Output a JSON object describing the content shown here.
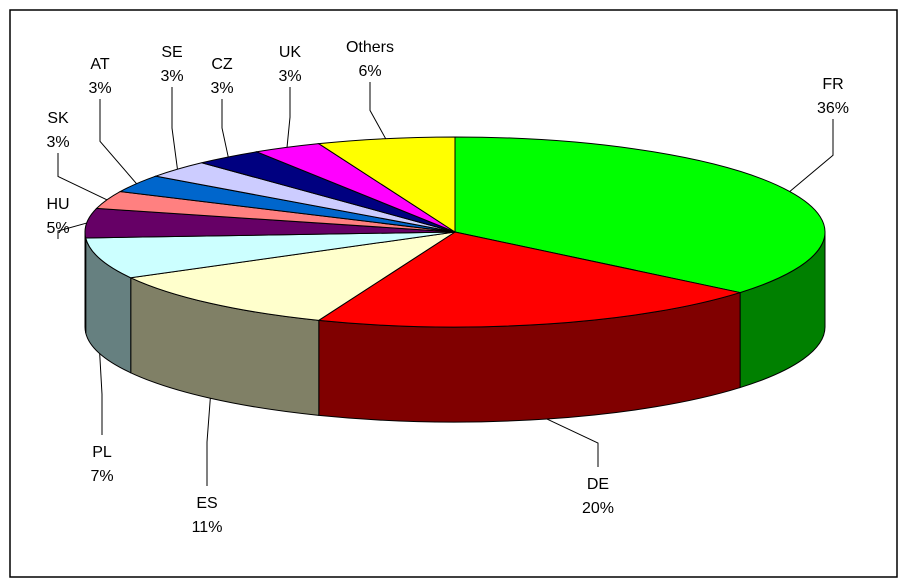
{
  "chart_data": {
    "type": "pie3d",
    "categories": [
      "FR",
      "DE",
      "ES",
      "PL",
      "HU",
      "SK",
      "AT",
      "SE",
      "CZ",
      "UK",
      "Others"
    ],
    "values": [
      36,
      20,
      11,
      7,
      5,
      3,
      3,
      3,
      3,
      3,
      6
    ],
    "value_labels": [
      "36%",
      "20%",
      "11%",
      "7%",
      "5%",
      "3%",
      "3%",
      "3%",
      "3%",
      "3%",
      "6%"
    ],
    "colors": [
      "#00ff00",
      "#ff0000",
      "#ffffcc",
      "#ccffff",
      "#660066",
      "#ff8080",
      "#0066cc",
      "#ccccff",
      "#000080",
      "#ff00ff",
      "#ffff00"
    ]
  }
}
